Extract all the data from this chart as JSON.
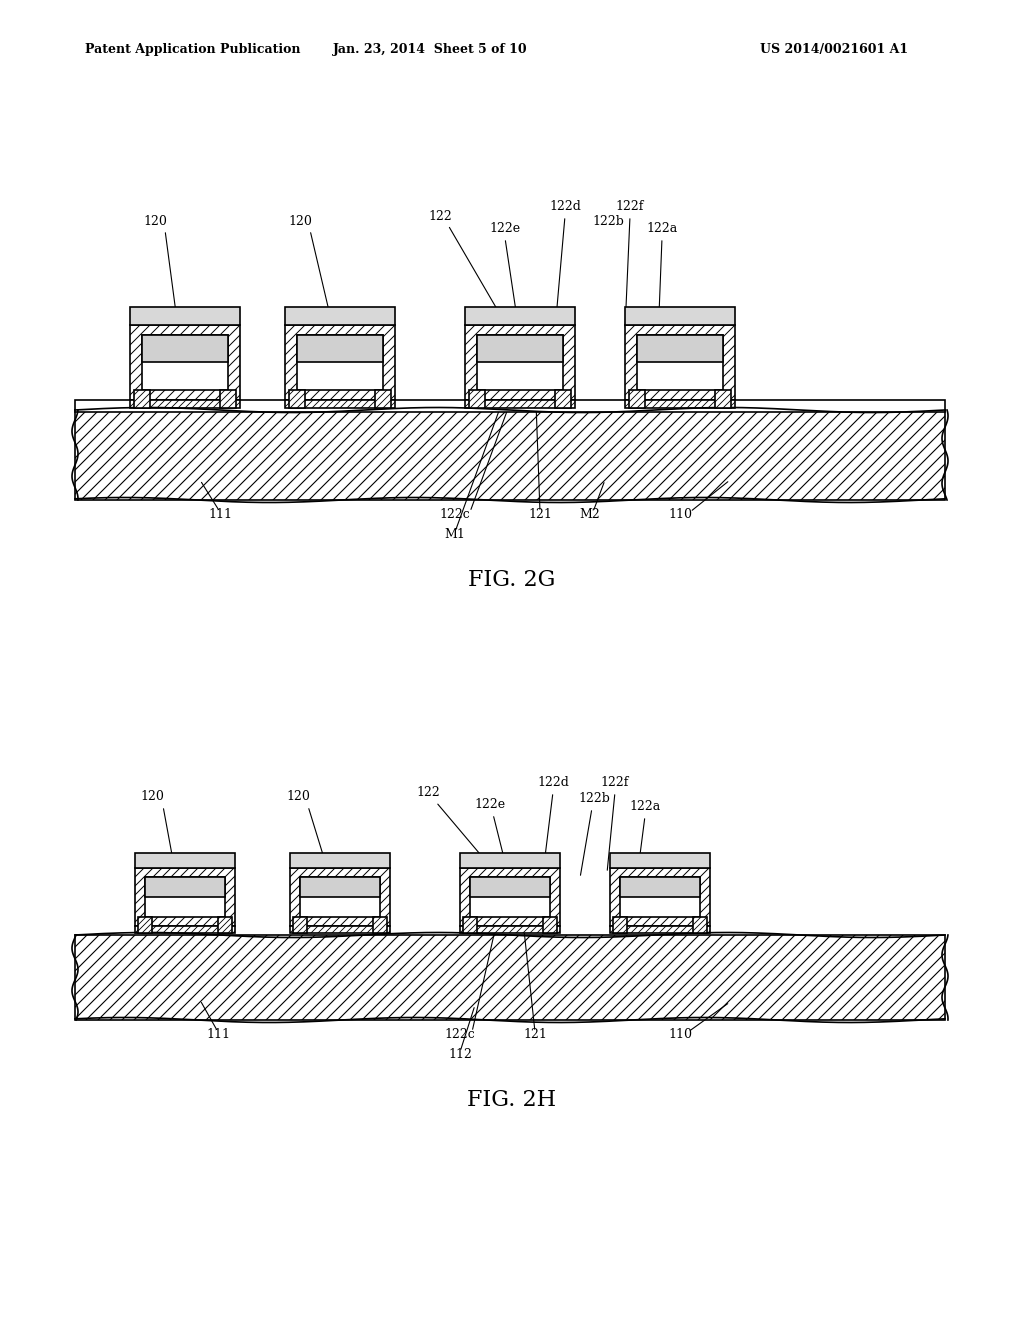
{
  "bg_color": "#ffffff",
  "header_left": "Patent Application Publication",
  "header_mid": "Jan. 23, 2014  Sheet 5 of 10",
  "header_right": "US 2014/0021601 A1",
  "fig2g_title": "FIG. 2G",
  "fig2h_title": "FIG. 2H",
  "line_color": "#000000",
  "hatch_color": "#000000",
  "fill_light": "#d8d8d8",
  "fill_dots": "#e8e8e8"
}
